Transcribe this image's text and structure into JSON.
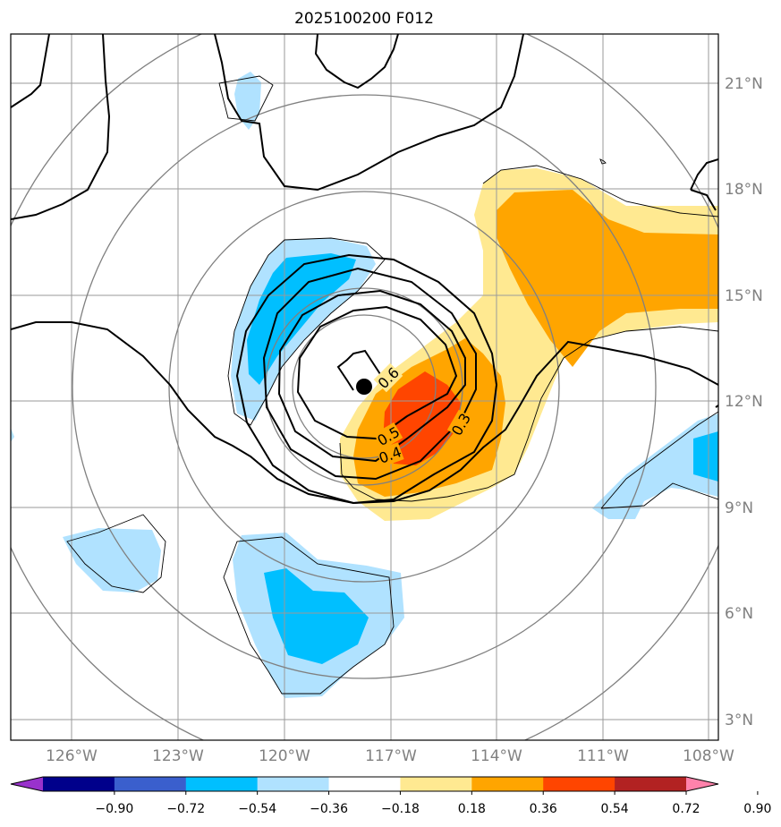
{
  "chart_data": {
    "type": "map",
    "title": "2025100200 F012",
    "center_marker": {
      "lon": -117.8,
      "lat": 12.4
    },
    "lon_ticks": [
      "126°W",
      "123°W",
      "120°W",
      "117°W",
      "114°W",
      "111°W",
      "108°W"
    ],
    "lat_ticks": [
      "3°N",
      "6°N",
      "9°N",
      "12°N",
      "15°N",
      "18°N",
      "21°N"
    ],
    "contour_labels": [
      "0.6",
      "0.5",
      "0.4",
      "0.3"
    ],
    "grid": true,
    "colorbar": {
      "ticks": [
        "−0.90",
        "−0.72",
        "−0.54",
        "−0.36",
        "−0.18",
        "0.18",
        "0.36",
        "0.54",
        "0.72",
        "0.90"
      ],
      "colors": [
        "#9932cc",
        "#00008b",
        "#3a5fcd",
        "#00bfff",
        "#b0e2ff",
        "#ffffff",
        "#ffe991",
        "#ffa500",
        "#ff4500",
        "#b22222",
        "#ff82ab"
      ],
      "extend": "both"
    }
  }
}
